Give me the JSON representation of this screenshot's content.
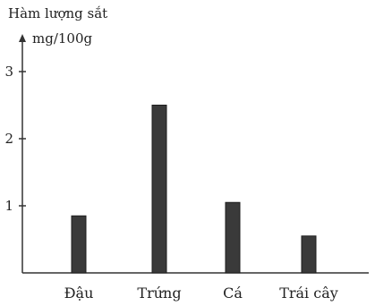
{
  "chart_data": {
    "type": "bar",
    "ylabel": "Hàm lượng sắt",
    "yunit": "mg/100g",
    "xlabel": "",
    "categories": [
      "Đậu",
      "Trứng",
      "Cá",
      "Trái cây"
    ],
    "values": [
      0.85,
      2.5,
      1.05,
      0.55
    ],
    "ylim": [
      0,
      3
    ],
    "yticks": [
      1,
      2,
      3
    ],
    "grid": false,
    "bar_color": "#3a3a3a",
    "axis_color": "#333333"
  }
}
